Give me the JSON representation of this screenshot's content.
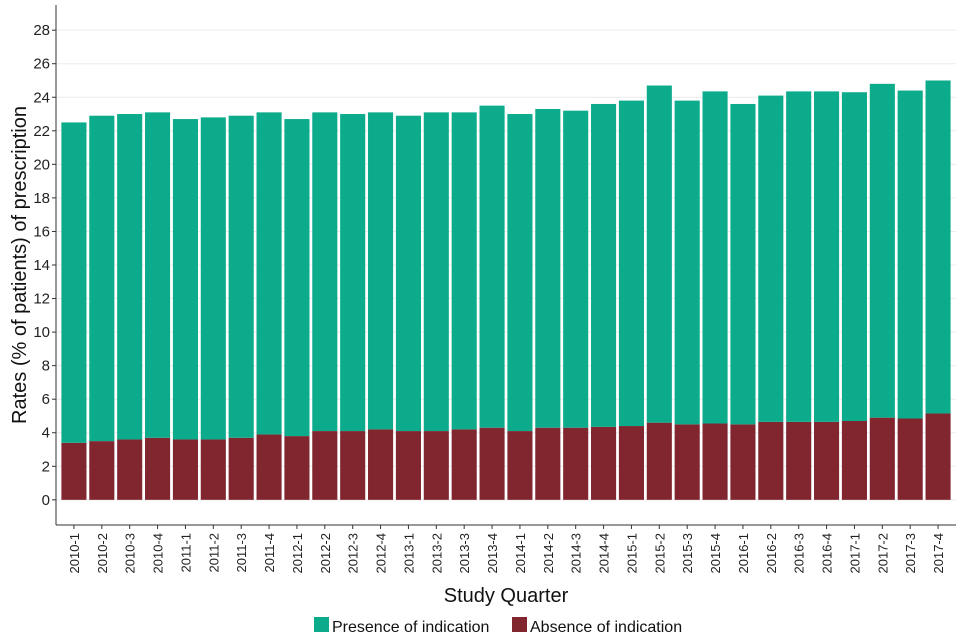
{
  "chart_data": {
    "type": "bar",
    "stacked": true,
    "title": "",
    "xlabel": "Study Quarter",
    "ylabel": "Rates (% of patients) of prescription",
    "ylim": [
      -1.5,
      29.5
    ],
    "yticks": [
      0,
      2,
      4,
      6,
      8,
      10,
      12,
      14,
      16,
      18,
      20,
      22,
      24,
      26,
      28
    ],
    "grid": "horizontal",
    "legend_position": "bottom",
    "categories": [
      "2010-1",
      "2010-2",
      "2010-3",
      "2010-4",
      "2011-1",
      "2011-2",
      "2011-3",
      "2011-4",
      "2012-1",
      "2012-2",
      "2012-3",
      "2012-4",
      "2013-1",
      "2013-2",
      "2013-3",
      "2013-4",
      "2014-1",
      "2014-2",
      "2014-3",
      "2014-4",
      "2015-1",
      "2015-2",
      "2015-3",
      "2015-4",
      "2016-1",
      "2016-2",
      "2016-3",
      "2016-4",
      "2017-1",
      "2017-2",
      "2017-3",
      "2017-4"
    ],
    "series": [
      {
        "name": "Absence of indication",
        "color": "#81252f",
        "values": [
          3.4,
          3.5,
          3.6,
          3.7,
          3.6,
          3.6,
          3.7,
          3.9,
          3.8,
          4.1,
          4.1,
          4.2,
          4.1,
          4.1,
          4.2,
          4.3,
          4.1,
          4.3,
          4.3,
          4.35,
          4.4,
          4.6,
          4.5,
          4.55,
          4.5,
          4.65,
          4.65,
          4.65,
          4.7,
          4.9,
          4.85,
          5.15
        ]
      },
      {
        "name": "Presence of indication",
        "color": "#0bab8c",
        "values": [
          19.1,
          19.4,
          19.4,
          19.4,
          19.1,
          19.2,
          19.2,
          19.2,
          18.9,
          19.0,
          18.9,
          18.9,
          18.8,
          19.0,
          18.9,
          19.2,
          18.9,
          19.0,
          18.9,
          19.25,
          19.4,
          20.1,
          19.3,
          19.8,
          19.1,
          19.45,
          19.7,
          19.7,
          19.6,
          19.9,
          19.55,
          19.85
        ]
      }
    ],
    "legend": [
      {
        "label": "Presence of indication",
        "color": "#0bab8c"
      },
      {
        "label": "Absence of indication",
        "color": "#81252f"
      }
    ]
  }
}
